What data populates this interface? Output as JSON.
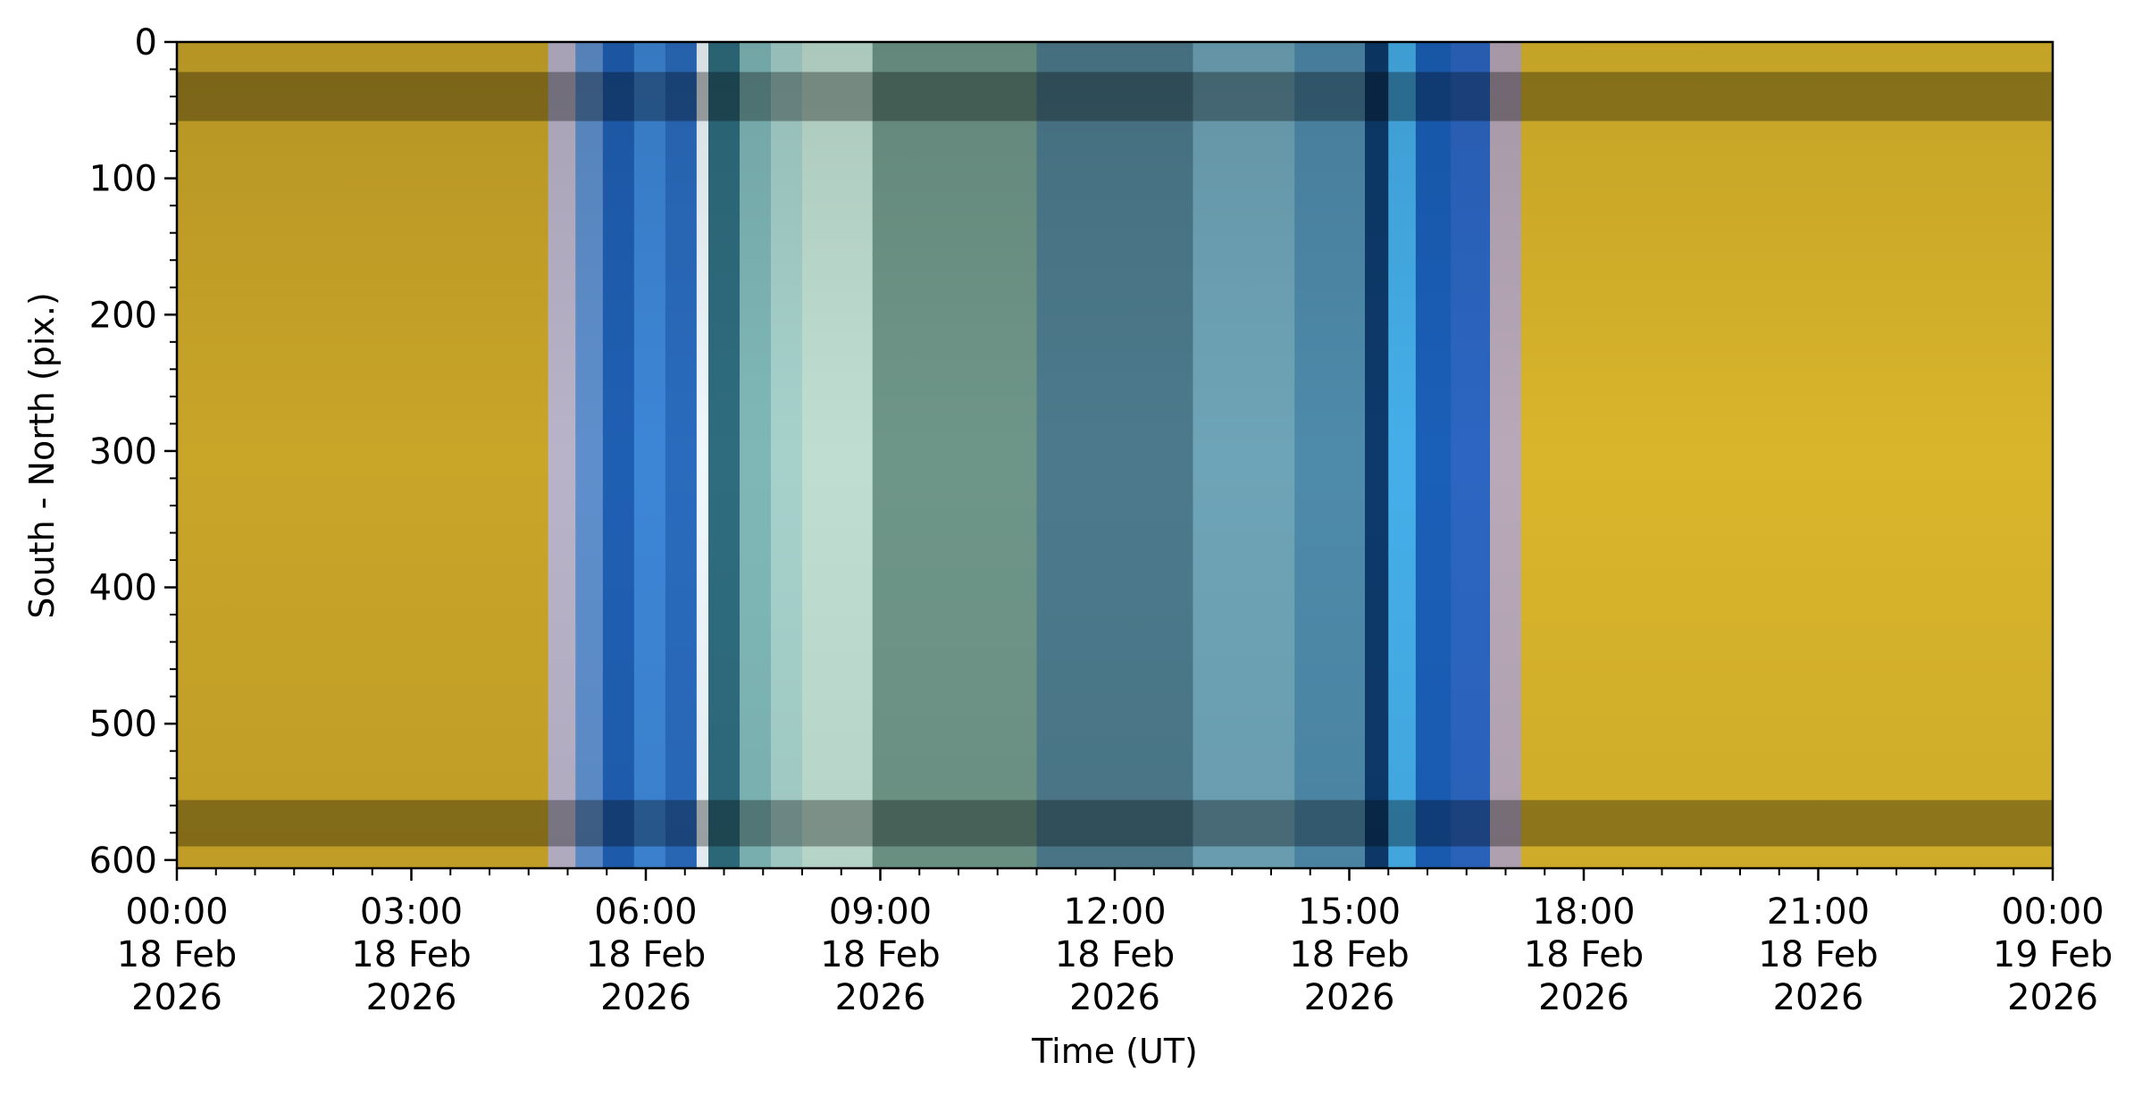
{
  "chart_data": {
    "type": "heatmap",
    "title": "",
    "xlabel": "Time (UT)",
    "ylabel": "South - North (pix.)",
    "x_range_hours": [
      0,
      24
    ],
    "y_range": [
      0,
      606
    ],
    "y_inverted": true,
    "grid": false,
    "x_ticks": [
      {
        "hour": 0,
        "time": "00:00",
        "day": "18 Feb",
        "year": "2026"
      },
      {
        "hour": 3,
        "time": "03:00",
        "day": "18 Feb",
        "year": "2026"
      },
      {
        "hour": 6,
        "time": "06:00",
        "day": "18 Feb",
        "year": "2026"
      },
      {
        "hour": 9,
        "time": "09:00",
        "day": "18 Feb",
        "year": "2026"
      },
      {
        "hour": 12,
        "time": "12:00",
        "day": "18 Feb",
        "year": "2026"
      },
      {
        "hour": 15,
        "time": "15:00",
        "day": "18 Feb",
        "year": "2026"
      },
      {
        "hour": 18,
        "time": "18:00",
        "day": "18 Feb",
        "year": "2026"
      },
      {
        "hour": 21,
        "time": "21:00",
        "day": "18 Feb",
        "year": "2026"
      },
      {
        "hour": 24,
        "time": "00:00",
        "day": "19 Feb",
        "year": "2026"
      }
    ],
    "x_minor_step_hours": 0.5,
    "y_ticks": [
      0,
      100,
      200,
      300,
      400,
      500,
      600
    ],
    "y_minor_step": 20,
    "time_bands": [
      {
        "start": 0.0,
        "end": 4.75,
        "color": "#c9a528"
      },
      {
        "start": 4.75,
        "end": 5.1,
        "color": "#b9b3c9"
      },
      {
        "start": 5.1,
        "end": 5.45,
        "color": "#5e8fcc"
      },
      {
        "start": 5.45,
        "end": 5.85,
        "color": "#1f5fb3"
      },
      {
        "start": 5.85,
        "end": 6.25,
        "color": "#3d86d6"
      },
      {
        "start": 6.25,
        "end": 6.65,
        "color": "#2a6bbd"
      },
      {
        "start": 6.65,
        "end": 6.8,
        "color": "#eef7fb"
      },
      {
        "start": 6.8,
        "end": 7.2,
        "color": "#2e6c7e"
      },
      {
        "start": 7.2,
        "end": 7.6,
        "color": "#7fb7b7"
      },
      {
        "start": 7.6,
        "end": 8.0,
        "color": "#a6d1cb"
      },
      {
        "start": 8.0,
        "end": 8.9,
        "color": "#bfded1"
      },
      {
        "start": 8.9,
        "end": 11.0,
        "color": "#6e9688"
      },
      {
        "start": 11.0,
        "end": 13.0,
        "color": "#4c7a8c"
      },
      {
        "start": 13.0,
        "end": 14.3,
        "color": "#6ea4b7"
      },
      {
        "start": 14.3,
        "end": 15.2,
        "color": "#4e8aaa"
      },
      {
        "start": 15.2,
        "end": 15.5,
        "color": "#0d3a6b"
      },
      {
        "start": 15.5,
        "end": 15.85,
        "color": "#45aee8"
      },
      {
        "start": 15.85,
        "end": 16.3,
        "color": "#1a5fb8"
      },
      {
        "start": 16.3,
        "end": 16.8,
        "color": "#2c66c2"
      },
      {
        "start": 16.8,
        "end": 17.2,
        "color": "#b8a8b8"
      },
      {
        "start": 17.2,
        "end": 24.0,
        "color": "#d9b52b"
      }
    ],
    "horizontal_dark_bands": [
      {
        "y_start": 22,
        "y_end": 58
      },
      {
        "y_start": 556,
        "y_end": 590
      }
    ],
    "colors": {
      "daytime_yellow": "#d9b52b",
      "twilight_blue": "#2a6bbd",
      "night_teal": "#5f8f8e"
    }
  }
}
